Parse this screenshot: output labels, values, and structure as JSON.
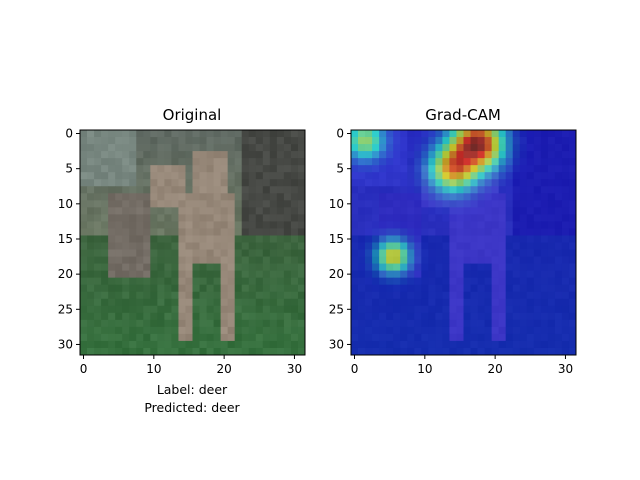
{
  "chart_data": [
    {
      "type": "heatmap",
      "title": "Original",
      "description": "image",
      "grid_size": 32,
      "xticks": [
        0,
        10,
        20,
        30
      ],
      "yticks": [
        0,
        5,
        10,
        15,
        20,
        25,
        30
      ],
      "xlim": [
        -0.5,
        31.5
      ],
      "ylim": [
        31.5,
        -0.5
      ],
      "caption": [
        "Label: deer",
        "Predicted: deer"
      ]
    },
    {
      "type": "heatmap",
      "title": "Grad-CAM",
      "description": "heatmap overlay",
      "grid_size": 32,
      "xticks": [
        0,
        10,
        20,
        30
      ],
      "yticks": [
        0,
        5,
        10,
        15,
        20,
        25,
        30
      ],
      "xlim": [
        -0.5,
        31.5
      ],
      "ylim": [
        31.5,
        -0.5
      ],
      "colormap": "jet",
      "hotspots": [
        {
          "x": 17.5,
          "y": 1.5,
          "intensity": 1.0,
          "spread": 2.4
        },
        {
          "x": 14,
          "y": 5,
          "intensity": 0.72,
          "spread": 2.2
        },
        {
          "x": 5.5,
          "y": 17.5,
          "intensity": 0.62,
          "spread": 1.6
        },
        {
          "x": 1.5,
          "y": 1.0,
          "intensity": 0.5,
          "spread": 1.8
        }
      ]
    }
  ]
}
